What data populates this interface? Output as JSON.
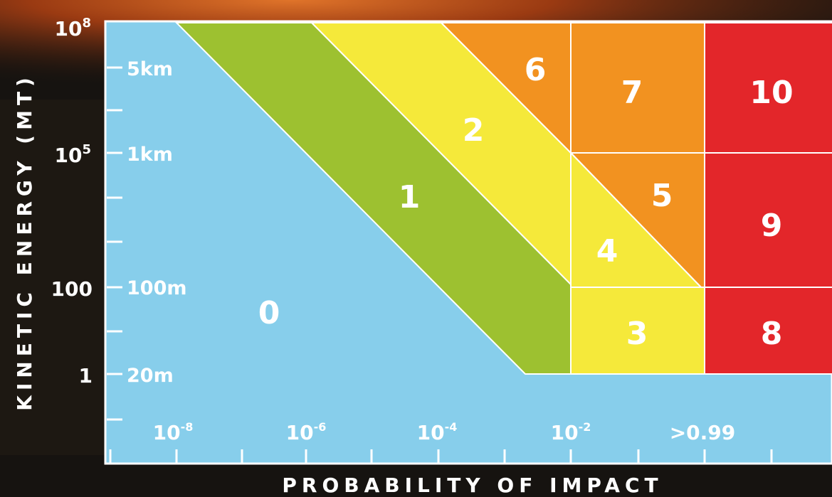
{
  "chart_data": {
    "type": "heatmap",
    "xlabel": "PROBABILITY OF IMPACT",
    "ylabel": "KINETIC ENERGY (MT)",
    "x_tick_labels": [
      {
        "base": "10",
        "exp": "-8"
      },
      {
        "base": "10",
        "exp": "-6"
      },
      {
        "base": "10",
        "exp": "-4"
      },
      {
        "base": "10",
        "exp": "-2"
      },
      {
        "base": ">0.99",
        "exp": ""
      }
    ],
    "y_tick_labels": [
      {
        "base": "10",
        "exp": "8"
      },
      {
        "base": "10",
        "exp": "5"
      },
      {
        "base": "100",
        "exp": ""
      },
      {
        "base": "1",
        "exp": ""
      }
    ],
    "size_labels": [
      "5km",
      "1km",
      "100m",
      "20m"
    ],
    "zones": [
      {
        "label": "0",
        "color": "#87ceeb"
      },
      {
        "label": "1",
        "color": "#9dc130"
      },
      {
        "label": "2",
        "color": "#f5e93a"
      },
      {
        "label": "3",
        "color": "#f5e93a"
      },
      {
        "label": "4",
        "color": "#f5e93a"
      },
      {
        "label": "5",
        "color": "#f29220"
      },
      {
        "label": "6",
        "color": "#f29220"
      },
      {
        "label": "7",
        "color": "#f29220"
      },
      {
        "label": "8",
        "color": "#e3262a"
      },
      {
        "label": "9",
        "color": "#e3262a"
      },
      {
        "label": "10",
        "color": "#e3262a"
      }
    ]
  }
}
